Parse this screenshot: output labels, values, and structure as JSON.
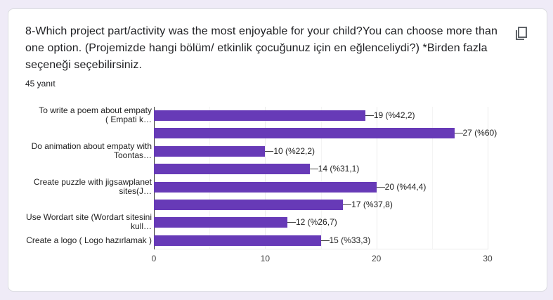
{
  "card": {
    "question": "8-Which project part/activity was the most enjoyable for your child?You can choose more than one option. (Projemizde hangi bölüm/ etkinlik çocuğunuz için en eğlenceliydi?) *Birden fazla seçeneği seçebilirsiniz.",
    "responses": "45 yanıt",
    "copy_icon": "copy-icon"
  },
  "colors": {
    "bar": "#673ab7",
    "background": "#efebf7",
    "card": "#ffffff"
  },
  "chart_data": {
    "type": "bar",
    "orientation": "horizontal",
    "title": "",
    "xlabel": "",
    "ylabel": "",
    "xlim": [
      0,
      30
    ],
    "x_ticks": [
      "0",
      "10",
      "20",
      "30"
    ],
    "grid": true,
    "legend": "none",
    "categories": [
      "To write a poem about empaty ( Empati k…",
      "",
      "Do animation about empaty with Toontas…",
      "",
      "Create puzzle with jigsawplanet sites(J…",
      "",
      "Use Wordart site (Wordart sitesini kull…",
      "Create a logo ( Logo hazırlamak )"
    ],
    "category_label_lines": [
      [
        "To write a poem about empaty",
        "( Empati k…"
      ],
      [],
      [
        "Do animation about empaty with",
        "Toontas…"
      ],
      [],
      [
        "Create puzzle with jigsawplanet",
        "sites(J…"
      ],
      [],
      [
        "Use Wordart site (Wordart sitesini",
        "kull…"
      ],
      [
        "Create a logo ( Logo hazırlamak )"
      ]
    ],
    "values": [
      19,
      27,
      10,
      14,
      20,
      17,
      12,
      15
    ],
    "data_labels": [
      "19 (%42,2)",
      "27 (%60)",
      "10 (%22,2)",
      "14 (%31,1)",
      "20 (%44,4)",
      "17 (%37,8)",
      "12 (%26,7)",
      "15 (%33,3)"
    ]
  }
}
